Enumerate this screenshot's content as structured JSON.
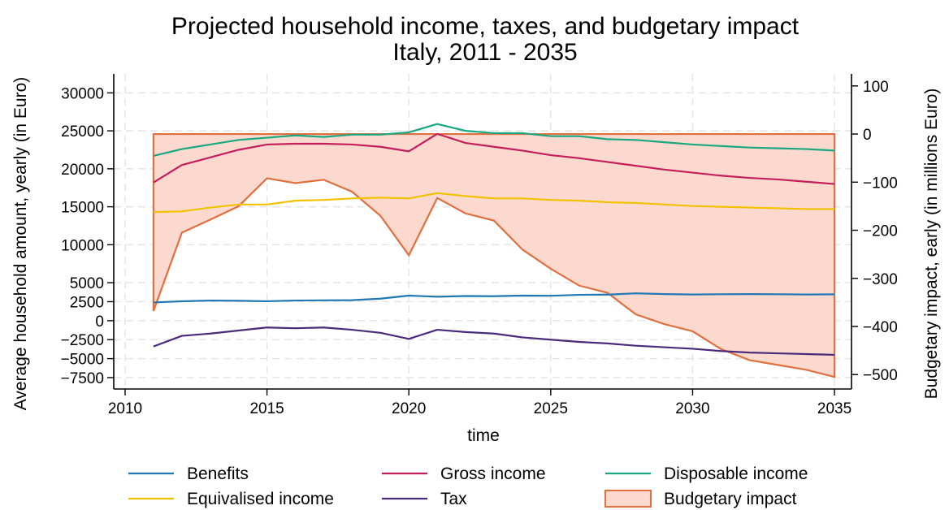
{
  "chart_data": {
    "type": "line",
    "title": "Projected household income, taxes, and budgetary impact",
    "subtitle": "Italy, 2011 - 2035",
    "xlabel": "time",
    "ylabel_left": "Average household amount, yearly (in Euro)",
    "ylabel_right": "Budgetary impact,  early (in millions Euro)",
    "xlim": [
      2009.6,
      2035.6
    ],
    "ylim_left": [
      -9000,
      32500
    ],
    "ylim_right": [
      -530,
      125
    ],
    "x_ticks": [
      2010,
      2015,
      2020,
      2025,
      2030,
      2035
    ],
    "y_ticks_left": [
      30000,
      25000,
      20000,
      15000,
      10000,
      5000,
      2500,
      0,
      -2500,
      -5000,
      -7500
    ],
    "y_ticks_right": [
      100,
      0,
      -100,
      -200,
      -300,
      -400,
      -500
    ],
    "grid": true,
    "legend_position": "bottom",
    "x": [
      2011,
      2012,
      2013,
      2014,
      2015,
      2016,
      2017,
      2018,
      2019,
      2020,
      2021,
      2022,
      2023,
      2024,
      2025,
      2026,
      2027,
      2028,
      2029,
      2030,
      2031,
      2032,
      2033,
      2034,
      2035
    ],
    "series": [
      {
        "name": "Benefits",
        "axis": "left",
        "color": "#1f77b4",
        "values": [
          2400,
          2550,
          2650,
          2620,
          2560,
          2650,
          2680,
          2700,
          2900,
          3300,
          3150,
          3250,
          3220,
          3300,
          3280,
          3400,
          3430,
          3600,
          3500,
          3450,
          3480,
          3500,
          3480,
          3450,
          3470
        ]
      },
      {
        "name": "Gross income",
        "axis": "left",
        "color": "#c41e5c",
        "values": [
          18200,
          20500,
          21500,
          22500,
          23200,
          23300,
          23300,
          23200,
          22900,
          22300,
          24600,
          23400,
          22900,
          22400,
          21800,
          21400,
          20900,
          20400,
          19900,
          19500,
          19100,
          18800,
          18600,
          18300,
          18000
        ]
      },
      {
        "name": "Disposable income",
        "axis": "left",
        "color": "#19a882",
        "values": [
          21700,
          22600,
          23200,
          23800,
          24100,
          24400,
          24200,
          24500,
          24500,
          24800,
          25900,
          25000,
          24700,
          24700,
          24300,
          24300,
          23900,
          23800,
          23500,
          23200,
          23000,
          22800,
          22700,
          22600,
          22400
        ]
      },
      {
        "name": "Equivalised income",
        "axis": "left",
        "color": "#f2c100",
        "values": [
          14300,
          14400,
          14900,
          15300,
          15300,
          15800,
          15900,
          16100,
          16200,
          16100,
          16800,
          16400,
          16100,
          16100,
          15900,
          15800,
          15600,
          15500,
          15300,
          15100,
          15000,
          14900,
          14800,
          14700,
          14700
        ]
      },
      {
        "name": "Tax",
        "axis": "left",
        "color": "#4b2a7a",
        "values": [
          -3400,
          -2000,
          -1700,
          -1300,
          -900,
          -1000,
          -900,
          -1200,
          -1600,
          -2400,
          -1200,
          -1500,
          -1700,
          -2200,
          -2500,
          -2800,
          -3000,
          -3300,
          -3500,
          -3700,
          -4000,
          -4200,
          -4300,
          -4400,
          -4500
        ]
      },
      {
        "name": "Budgetary impact",
        "axis": "right",
        "type": "area",
        "color": "#e07040",
        "fill": "#fcd9cf",
        "baseline": 0,
        "values": [
          -368,
          -205,
          -178,
          -150,
          -92,
          -102,
          -95,
          -120,
          -170,
          -252,
          -133,
          -165,
          -180,
          -240,
          -280,
          -315,
          -330,
          -375,
          -395,
          -410,
          -447,
          -470,
          -480,
          -490,
          -505
        ]
      }
    ],
    "legend": {
      "items": [
        {
          "label": "Benefits",
          "color": "#1f77b4",
          "kind": "line"
        },
        {
          "label": "Gross income",
          "color": "#c41e5c",
          "kind": "line"
        },
        {
          "label": "Disposable income",
          "color": "#19a882",
          "kind": "line"
        },
        {
          "label": "Equivalised income",
          "color": "#f2c100",
          "kind": "line"
        },
        {
          "label": "Tax",
          "color": "#4b2a7a",
          "kind": "line"
        },
        {
          "label": "Budgetary impact",
          "color": "#e07040",
          "fill": "#fcd9cf",
          "kind": "area"
        }
      ]
    }
  }
}
